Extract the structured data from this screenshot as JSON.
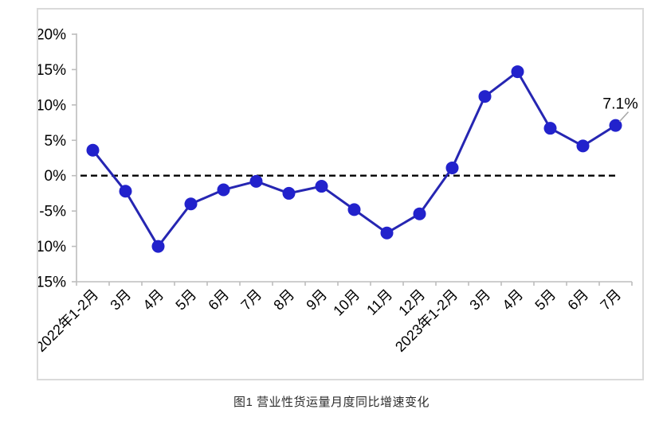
{
  "caption": "图1 营业性货运量月度同比增速变化",
  "chart_data": {
    "type": "line",
    "title": "图1 营业性货运量月度同比增速变化",
    "categories": [
      "2022年1-2月",
      "3月",
      "4月",
      "5月",
      "6月",
      "7月",
      "8月",
      "9月",
      "10月",
      "11月",
      "12月",
      "2023年1-2月",
      "3月",
      "4月",
      "5月",
      "6月",
      "7月"
    ],
    "values": [
      3.6,
      -2.2,
      -10.0,
      -4.0,
      -2.0,
      -0.8,
      -2.5,
      -1.5,
      -4.8,
      -8.1,
      -5.4,
      1.1,
      11.2,
      14.7,
      6.7,
      4.2,
      7.1
    ],
    "xlabel": "",
    "ylabel": "",
    "ylim": [
      -15,
      20
    ],
    "ytick_step": 5,
    "ytick_suffix": "%",
    "grid": false,
    "legend": "none",
    "zero_line_dashed": true,
    "annotation": {
      "index": 16,
      "text": "7.1%"
    },
    "colors": {
      "line": "#2626b2",
      "marker": "#2222cc",
      "axis": "#bdbdbd",
      "tick_label": "#000000",
      "zero_line": "#000000",
      "leader_line": "#a8a8a8",
      "annotation_text": "#000000"
    }
  }
}
